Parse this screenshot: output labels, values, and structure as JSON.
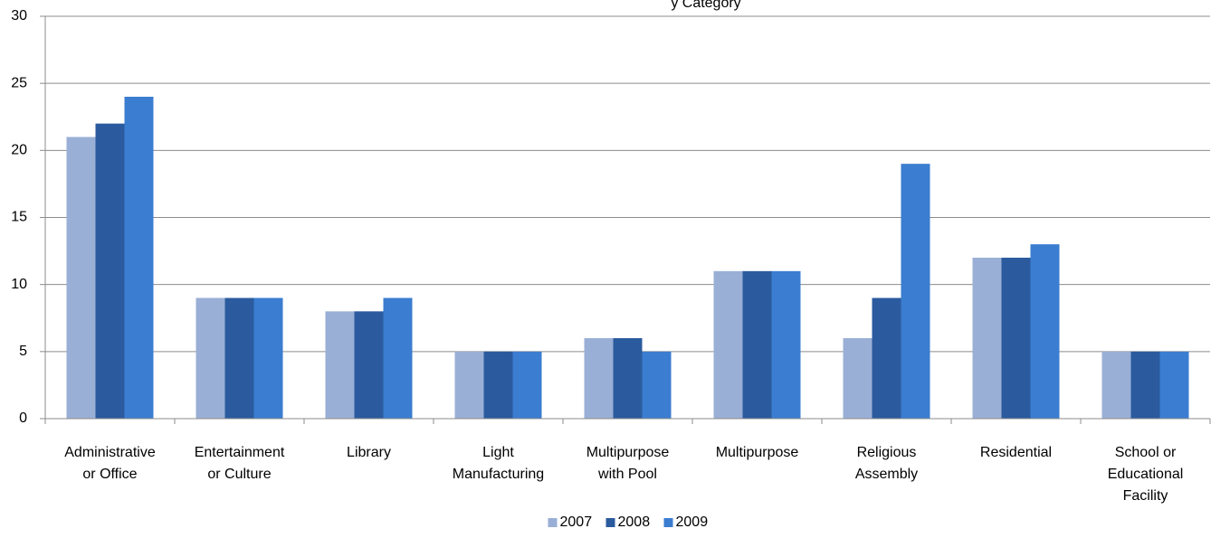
{
  "chart_data": {
    "type": "bar",
    "title": "y Category",
    "categories": [
      "Administrative or Office",
      "Entertainment or Culture",
      "Library",
      "Light Manufacturing",
      "Multipurpose with Pool",
      "Multipurpose",
      "Religious Assembly",
      "Residential",
      "School or Educational Facility"
    ],
    "series": [
      {
        "name": "2007",
        "color": "#9aafd6",
        "values": [
          21,
          9,
          8,
          5,
          6,
          11,
          6,
          12,
          5
        ]
      },
      {
        "name": "2008",
        "color": "#2b5b9e",
        "values": [
          22,
          9,
          8,
          5,
          6,
          11,
          9,
          12,
          5
        ]
      },
      {
        "name": "2009",
        "color": "#3b7dd0",
        "values": [
          24,
          9,
          9,
          5,
          5,
          11,
          19,
          13,
          5
        ]
      }
    ],
    "ylim": [
      0,
      30
    ],
    "yticks": [
      0,
      5,
      10,
      15,
      20,
      25,
      30
    ],
    "grid": true,
    "legend": "bottom"
  }
}
